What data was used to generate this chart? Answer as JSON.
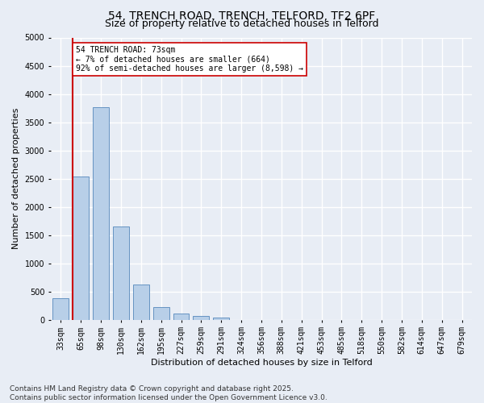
{
  "title1": "54, TRENCH ROAD, TRENCH, TELFORD, TF2 6PF",
  "title2": "Size of property relative to detached houses in Telford",
  "xlabel": "Distribution of detached houses by size in Telford",
  "ylabel": "Number of detached properties",
  "categories": [
    "33sqm",
    "65sqm",
    "98sqm",
    "130sqm",
    "162sqm",
    "195sqm",
    "227sqm",
    "259sqm",
    "291sqm",
    "324sqm",
    "356sqm",
    "388sqm",
    "421sqm",
    "453sqm",
    "485sqm",
    "518sqm",
    "550sqm",
    "582sqm",
    "614sqm",
    "647sqm",
    "679sqm"
  ],
  "values": [
    380,
    2530,
    3760,
    1650,
    620,
    220,
    105,
    60,
    40,
    0,
    0,
    0,
    0,
    0,
    0,
    0,
    0,
    0,
    0,
    0,
    0
  ],
  "bar_color": "#b8cfe8",
  "bar_edge_color": "#5588bb",
  "vline_color": "#cc0000",
  "annotation_text": "54 TRENCH ROAD: 73sqm\n← 7% of detached houses are smaller (664)\n92% of semi-detached houses are larger (8,598) →",
  "annotation_box_color": "#ffffff",
  "annotation_box_edge": "#cc0000",
  "ylim": [
    0,
    5000
  ],
  "yticks": [
    0,
    500,
    1000,
    1500,
    2000,
    2500,
    3000,
    3500,
    4000,
    4500,
    5000
  ],
  "background_color": "#e8edf5",
  "plot_bg_color": "#e8edf5",
  "grid_color": "#ffffff",
  "footer": "Contains HM Land Registry data © Crown copyright and database right 2025.\nContains public sector information licensed under the Open Government Licence v3.0.",
  "title_fontsize": 10,
  "subtitle_fontsize": 9,
  "axis_label_fontsize": 8,
  "tick_fontsize": 7,
  "footer_fontsize": 6.5
}
